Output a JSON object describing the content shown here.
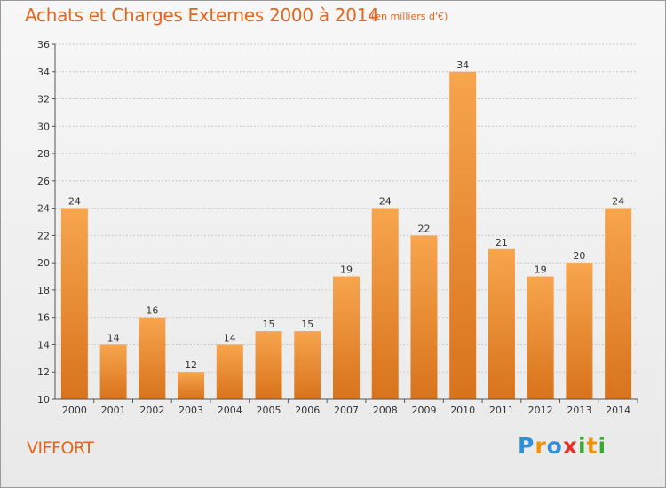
{
  "header": {
    "title": "Achats et Charges Externes 2000 à 2014",
    "subtitle": "(en milliers d'€)"
  },
  "footer": {
    "place": "VIFFORT",
    "logo_letters": [
      "P",
      "r",
      "o",
      "x",
      "i",
      "t",
      "i"
    ],
    "logo_colors": [
      "#2f8fd8",
      "#f39200",
      "#2f8fd8",
      "#e5332a",
      "#3aaa35",
      "#f39200",
      "#3aaa35"
    ]
  },
  "colors": {
    "bar_light": "#f7a54e",
    "bar_dark": "#d8731c",
    "accent": "#e2661e"
  },
  "chart_data": {
    "type": "bar",
    "categories": [
      "2000",
      "2001",
      "2002",
      "2003",
      "2004",
      "2005",
      "2006",
      "2007",
      "2008",
      "2009",
      "2010",
      "2011",
      "2012",
      "2013",
      "2014"
    ],
    "values": [
      24,
      14,
      16,
      12,
      14,
      15,
      15,
      19,
      24,
      22,
      34,
      21,
      19,
      20,
      24
    ],
    "ylim": [
      10,
      36
    ],
    "yticks": [
      "10",
      "12",
      "14",
      "16",
      "18",
      "20",
      "22",
      "24",
      "26",
      "28",
      "30",
      "32",
      "34",
      "36"
    ],
    "grid": true
  }
}
